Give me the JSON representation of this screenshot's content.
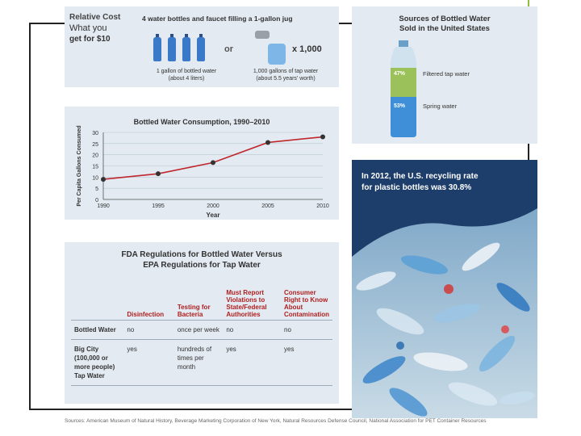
{
  "relative_cost": {
    "title": "Relative Cost",
    "subtitle_line1": "What you",
    "subtitle_line2": "get for $10",
    "headline": "4 water bottles and faucet filling a 1-gallon jug",
    "or_label": "or",
    "multiplier": "x 1,000",
    "caption_left_1": "1 gallon of bottled water",
    "caption_left_2": "(about 4 liters)",
    "caption_right_1": "1,000 gallons of tap water",
    "caption_right_2": "(about 5.5 years' worth)"
  },
  "sources": {
    "title_line1": "Sources of Bottled Water",
    "title_line2": "Sold in the United States",
    "filtered_pct": "47%",
    "filtered_label": "Filtered tap water",
    "spring_pct": "53%",
    "spring_label": "Spring water",
    "filtered_fraction": 0.47,
    "spring_fraction": 0.53
  },
  "chart_data": {
    "type": "line",
    "title": "Bottled Water Consumption, 1990–2010",
    "xlabel": "Year",
    "ylabel": "Per Capita Gallons Consumed",
    "x": [
      1990,
      1995,
      2000,
      2005,
      2010
    ],
    "series": [
      {
        "name": "Per capita consumption",
        "values": [
          9,
          11.5,
          16.5,
          25.5,
          28
        ]
      }
    ],
    "xlim": [
      1990,
      2010
    ],
    "ylim": [
      0,
      30
    ],
    "yticks": [
      0,
      5,
      10,
      15,
      20,
      25,
      30
    ],
    "xticks": [
      "1990",
      "1995",
      "2000",
      "2005",
      "2010"
    ],
    "line_color": "#c0272d"
  },
  "recycling": {
    "line1": "In 2012, the U.S. recycling rate",
    "line2": "for plastic bottles was 30.8%"
  },
  "regulations": {
    "title_line1": "FDA Regulations for Bottled Water Versus",
    "title_line2": "EPA Regulations for Tap Water",
    "columns": [
      "Disinfection",
      "Testing for Bacteria",
      "Must Report Violations to State/Federal Authorities",
      "Consumer Right to Know About Contamination"
    ],
    "rows": [
      {
        "label": "Bottled Water",
        "values": [
          "no",
          "once per week",
          "no",
          "no"
        ]
      },
      {
        "label": "Big City (100,000 or more people) Tap Water",
        "values": [
          "yes",
          "hundreds of times per month",
          "yes",
          "yes"
        ]
      }
    ]
  },
  "source_note": "Sources: American Museum of Natural History, Beverage Marketing Corporation of New York, Natural Resources Defense Council, National Association for PET Container Resources"
}
